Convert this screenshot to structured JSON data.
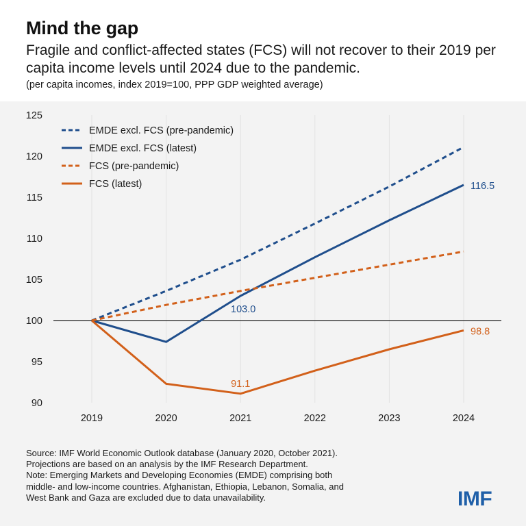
{
  "title": "Mind the gap",
  "subtitle": "Fragile and conflict-affected states (FCS) will not recover to their 2019 per capita income levels until 2024 due to the pandemic.",
  "note": "(per capita incomes, index 2019=100, PPP GDP weighted average)",
  "source_lines": [
    "Source: IMF World Economic Outlook database (January 2020, October 2021).",
    "Projections are based on an analysis by the IMF Research Department.",
    "Note: Emerging Markets and Developing Economies (EMDE) comprising both",
    "middle- and low-income countries. Afghanistan, Ethiopia, Lebanon, Somalia, and",
    "West Bank and Gaza are excluded due to data unavailability."
  ],
  "logo": "IMF",
  "colors": {
    "blue": "#1f4e8c",
    "orange": "#d2601a",
    "panel": "#f3f3f3",
    "grid": "#e2e2e2"
  },
  "chart_data": {
    "type": "line",
    "x": [
      "2019",
      "2020",
      "2021",
      "2022",
      "2023",
      "2024"
    ],
    "ylim": [
      90,
      125
    ],
    "yticks": [
      90,
      95,
      100,
      105,
      110,
      115,
      120,
      125
    ],
    "reference_line": 100,
    "grid": "vertical",
    "legend": "top-left",
    "series": [
      {
        "name": "EMDE excl. FCS (pre-pandemic)",
        "color": "#1f4e8c",
        "dash": true,
        "values": [
          100,
          103.6,
          107.4,
          111.8,
          116.3,
          121.1
        ]
      },
      {
        "name": "EMDE excl. FCS (latest)",
        "color": "#1f4e8c",
        "dash": false,
        "values": [
          100,
          97.4,
          103.0,
          107.7,
          112.2,
          116.5
        ]
      },
      {
        "name": "FCS (pre-pandemic)",
        "color": "#d2601a",
        "dash": true,
        "values": [
          100,
          101.9,
          103.6,
          105.2,
          106.8,
          108.4
        ]
      },
      {
        "name": "FCS (latest)",
        "color": "#d2601a",
        "dash": false,
        "values": [
          100,
          92.3,
          91.1,
          93.9,
          96.5,
          98.8
        ]
      }
    ],
    "data_labels": [
      {
        "text": "116.5",
        "x": "2024",
        "y": 116.5,
        "color": "#1f4e8c",
        "anchor": "right"
      },
      {
        "text": "103.0",
        "x": "2021",
        "y": 103.0,
        "color": "#1f4e8c",
        "anchor": "below"
      },
      {
        "text": "91.1",
        "x": "2021",
        "y": 91.1,
        "color": "#d2601a",
        "anchor": "above"
      },
      {
        "text": "98.8",
        "x": "2024",
        "y": 98.8,
        "color": "#d2601a",
        "anchor": "right"
      }
    ]
  }
}
